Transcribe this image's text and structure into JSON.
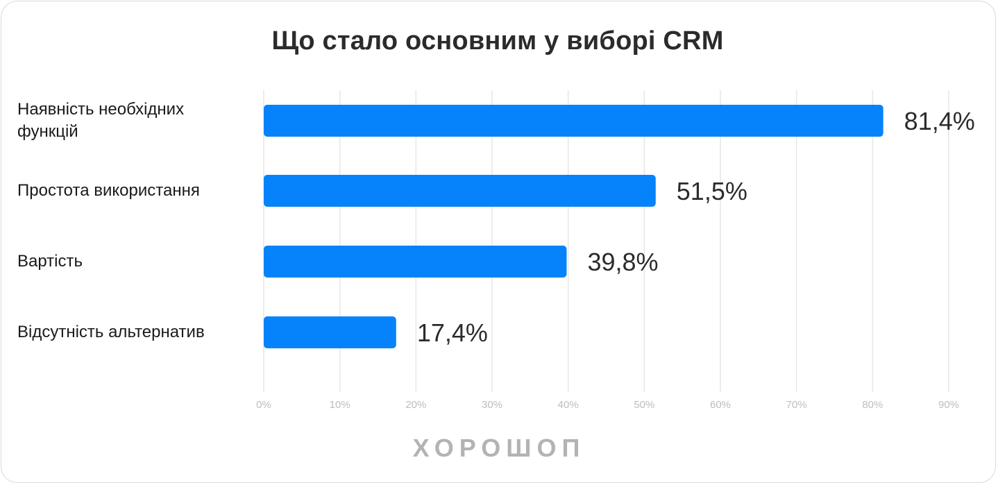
{
  "colors": {
    "bar": "#0683fb",
    "grid": "#e6e6e6",
    "tick_text": "#bdbdbd",
    "value_text": "#2b2b2b",
    "logo": "#b3b3b3"
  },
  "chart_data": {
    "type": "bar",
    "orientation": "horizontal",
    "title": "Що стало основним у виборі CRM",
    "categories": [
      "Наявність необхідних функцій",
      "Простота використання",
      "Вартість",
      "Відсутність альтернатив"
    ],
    "values": [
      81.4,
      51.5,
      39.8,
      17.4
    ],
    "value_labels": [
      "81,4%",
      "51,5%",
      "39,8%",
      "17,4%"
    ],
    "xlim": [
      0,
      90
    ],
    "x_ticks": [
      0,
      10,
      20,
      30,
      40,
      50,
      60,
      70,
      80,
      90
    ],
    "x_tick_labels": [
      "0%",
      "10%",
      "20%",
      "30%",
      "40%",
      "50%",
      "60%",
      "70%",
      "80%",
      "90%"
    ],
    "xlabel": "",
    "ylabel": "",
    "grid": true,
    "legend": "none"
  },
  "footer": {
    "logo_text": "ХОРОШОП"
  }
}
